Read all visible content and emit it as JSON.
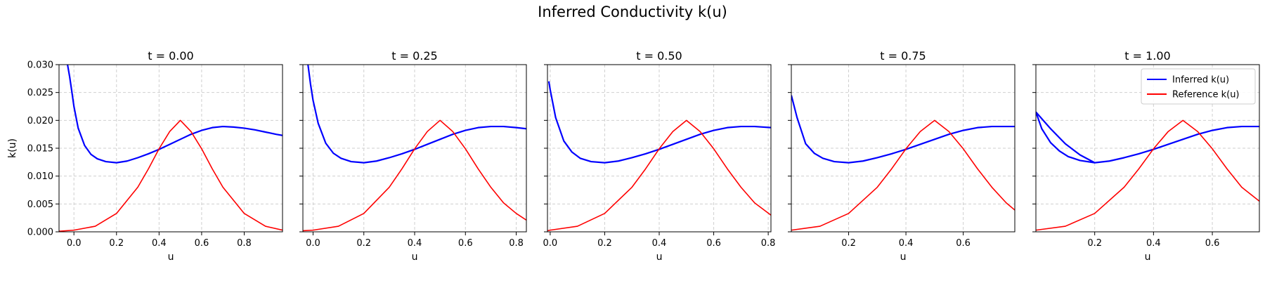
{
  "figure": {
    "title": "Inferred Conductivity k(u)"
  },
  "chart_data": [
    {
      "type": "line",
      "title": "t = 0.00",
      "xlabel": "u",
      "ylabel": "k(u)",
      "xlim": [
        -0.07,
        0.98
      ],
      "ylim": [
        0,
        0.03
      ],
      "xticks": [
        0.0,
        0.2,
        0.4,
        0.6,
        0.8
      ],
      "xtick_labels": [
        "0.0",
        "0.2",
        "0.4",
        "0.6",
        "0.8"
      ],
      "yticks": [
        0,
        0.005,
        0.01,
        0.015,
        0.02,
        0.025,
        0.03
      ],
      "ytick_labels": [
        "0.000",
        "0.005",
        "0.010",
        "0.015",
        "0.020",
        "0.025",
        "0.030"
      ],
      "grid": true,
      "series": [
        {
          "color": "#0000ff",
          "x": [
            -0.03,
            -0.02,
            -0.01,
            0.0,
            0.02,
            0.05,
            0.08,
            0.11,
            0.15,
            0.2,
            0.25,
            0.3,
            0.35,
            0.4,
            0.45,
            0.5,
            0.55,
            0.6,
            0.65,
            0.7,
            0.75,
            0.8,
            0.85,
            0.9,
            0.95,
            0.98
          ],
          "y": [
            0.03,
            0.0278,
            0.0252,
            0.0225,
            0.0186,
            0.0155,
            0.0139,
            0.0131,
            0.0126,
            0.0124,
            0.0127,
            0.0133,
            0.014,
            0.0148,
            0.0157,
            0.0166,
            0.0175,
            0.0182,
            0.0187,
            0.0189,
            0.0188,
            0.0186,
            0.0183,
            0.0179,
            0.0175,
            0.0173
          ]
        },
        {
          "color": "#ff0000",
          "x": [
            -0.07,
            0.0,
            0.1,
            0.2,
            0.3,
            0.35,
            0.4,
            0.45,
            0.5,
            0.55,
            0.6,
            0.65,
            0.7,
            0.8,
            0.9,
            0.98
          ],
          "y": [
            0.0001,
            0.0003,
            0.001,
            0.0033,
            0.008,
            0.0113,
            0.0149,
            0.018,
            0.02,
            0.018,
            0.0149,
            0.0113,
            0.008,
            0.0033,
            0.001,
            0.0003
          ]
        }
      ]
    },
    {
      "type": "line",
      "title": "t = 0.25",
      "xlabel": "u",
      "ylim": [
        0,
        0.03
      ],
      "xlim": [
        -0.04,
        0.84
      ],
      "xticks": [
        0.0,
        0.2,
        0.4,
        0.6,
        0.8
      ],
      "xtick_labels": [
        "0.0",
        "0.2",
        "0.4",
        "0.6",
        "0.8"
      ],
      "yticks": [
        0,
        0.005,
        0.01,
        0.015,
        0.02,
        0.025,
        0.03
      ],
      "grid": true,
      "series": [
        {
          "color": "#0000ff",
          "x": [
            -0.02,
            -0.01,
            0.0,
            0.02,
            0.05,
            0.08,
            0.11,
            0.15,
            0.2,
            0.25,
            0.3,
            0.35,
            0.4,
            0.45,
            0.5,
            0.55,
            0.6,
            0.65,
            0.7,
            0.75,
            0.8,
            0.84
          ],
          "y": [
            0.03,
            0.0265,
            0.0236,
            0.0195,
            0.0159,
            0.0141,
            0.0132,
            0.0126,
            0.0124,
            0.0127,
            0.0133,
            0.014,
            0.0148,
            0.0157,
            0.0166,
            0.0175,
            0.0182,
            0.0187,
            0.0189,
            0.0189,
            0.0187,
            0.0185
          ]
        },
        {
          "color": "#ff0000",
          "x": [
            -0.04,
            0.0,
            0.1,
            0.2,
            0.3,
            0.35,
            0.4,
            0.45,
            0.5,
            0.55,
            0.6,
            0.65,
            0.7,
            0.75,
            0.8,
            0.84
          ],
          "y": [
            0.0002,
            0.0003,
            0.001,
            0.0033,
            0.008,
            0.0113,
            0.0149,
            0.018,
            0.02,
            0.018,
            0.0149,
            0.0113,
            0.008,
            0.0052,
            0.0033,
            0.0021
          ]
        }
      ]
    },
    {
      "type": "line",
      "title": "t = 0.50",
      "xlabel": "u",
      "ylim": [
        0,
        0.03
      ],
      "xlim": [
        -0.01,
        0.81
      ],
      "xticks": [
        0.0,
        0.2,
        0.4,
        0.6,
        0.8
      ],
      "xtick_labels": [
        "0.0",
        "0.2",
        "0.4",
        "0.6",
        "0.8"
      ],
      "yticks": [
        0,
        0.005,
        0.01,
        0.015,
        0.02,
        0.025,
        0.03
      ],
      "grid": true,
      "series": [
        {
          "color": "#0000ff",
          "x": [
            -0.005,
            0.0,
            0.02,
            0.05,
            0.08,
            0.11,
            0.15,
            0.2,
            0.25,
            0.3,
            0.35,
            0.4,
            0.45,
            0.5,
            0.55,
            0.6,
            0.65,
            0.7,
            0.75,
            0.81
          ],
          "y": [
            0.027,
            0.0255,
            0.0205,
            0.0163,
            0.0143,
            0.0132,
            0.0126,
            0.0124,
            0.0127,
            0.0133,
            0.014,
            0.0148,
            0.0157,
            0.0166,
            0.0175,
            0.0182,
            0.0187,
            0.0189,
            0.0189,
            0.0187
          ]
        },
        {
          "color": "#ff0000",
          "x": [
            -0.01,
            0.0,
            0.1,
            0.2,
            0.3,
            0.35,
            0.4,
            0.45,
            0.5,
            0.55,
            0.6,
            0.65,
            0.7,
            0.75,
            0.81
          ],
          "y": [
            0.0002,
            0.0003,
            0.001,
            0.0033,
            0.008,
            0.0113,
            0.0149,
            0.018,
            0.02,
            0.018,
            0.0149,
            0.0113,
            0.008,
            0.0052,
            0.003
          ]
        }
      ]
    },
    {
      "type": "line",
      "title": "t = 0.75",
      "xlabel": "u",
      "ylim": [
        0,
        0.03
      ],
      "xlim": [
        0.0,
        0.78
      ],
      "xticks": [
        0.2,
        0.4,
        0.6
      ],
      "xtick_labels": [
        "0.2",
        "0.4",
        "0.6"
      ],
      "yticks": [
        0,
        0.005,
        0.01,
        0.015,
        0.02,
        0.025,
        0.03
      ],
      "grid": true,
      "series": [
        {
          "color": "#0000ff",
          "x": [
            0.0,
            0.02,
            0.05,
            0.08,
            0.11,
            0.15,
            0.2,
            0.25,
            0.3,
            0.35,
            0.4,
            0.45,
            0.5,
            0.55,
            0.6,
            0.65,
            0.7,
            0.75,
            0.78
          ],
          "y": [
            0.0245,
            0.0205,
            0.0158,
            0.0141,
            0.0132,
            0.0126,
            0.0124,
            0.0127,
            0.0133,
            0.014,
            0.0148,
            0.0157,
            0.0166,
            0.0175,
            0.0182,
            0.0187,
            0.0189,
            0.0189,
            0.0189
          ]
        },
        {
          "color": "#ff0000",
          "x": [
            0.0,
            0.1,
            0.2,
            0.3,
            0.35,
            0.4,
            0.45,
            0.5,
            0.55,
            0.6,
            0.65,
            0.7,
            0.75,
            0.78
          ],
          "y": [
            0.0003,
            0.001,
            0.0033,
            0.008,
            0.0113,
            0.0149,
            0.018,
            0.02,
            0.018,
            0.0149,
            0.0113,
            0.008,
            0.0052,
            0.0039
          ]
        }
      ]
    },
    {
      "type": "line",
      "title": "t = 1.00",
      "xlabel": "u",
      "ylim": [
        0,
        0.03
      ],
      "xlim": [
        0.0,
        0.76
      ],
      "xticks": [
        0.2,
        0.4,
        0.6
      ],
      "xtick_labels": [
        "0.2",
        "0.4",
        "0.6"
      ],
      "yticks": [
        0,
        0.005,
        0.01,
        0.015,
        0.02,
        0.025,
        0.03
      ],
      "grid": true,
      "legend": {
        "position": "top-right",
        "entries": [
          "Inferred k(u)",
          "Reference k(u)"
        ]
      },
      "series": [
        {
          "name": "Inferred k(u)",
          "color": "#0000ff",
          "x": [
            0.0,
            0.05,
            0.1,
            0.15,
            0.2,
            0.25,
            0.3,
            0.35,
            0.4,
            0.45,
            0.5,
            0.55,
            0.6,
            0.65,
            0.7,
            0.76
          ],
          "y": [
            0.0215,
            0.0185,
            0.0158,
            0.0138,
            0.0124,
            0.0127,
            0.0133,
            0.014,
            0.0148,
            0.0157,
            0.0166,
            0.0175,
            0.0182,
            0.0187,
            0.0189,
            0.0189
          ]
        },
        {
          "color": "#0000ff",
          "x": [
            0.0,
            0.02,
            0.05,
            0.08,
            0.11,
            0.15,
            0.2
          ],
          "y": [
            0.0215,
            0.0185,
            0.016,
            0.0145,
            0.0135,
            0.0128,
            0.0124
          ]
        },
        {
          "name": "Reference k(u)",
          "color": "#ff0000",
          "x": [
            0.0,
            0.1,
            0.2,
            0.3,
            0.35,
            0.4,
            0.45,
            0.5,
            0.55,
            0.6,
            0.65,
            0.7,
            0.76
          ],
          "y": [
            0.0003,
            0.001,
            0.0033,
            0.008,
            0.0113,
            0.0149,
            0.018,
            0.02,
            0.018,
            0.0149,
            0.0113,
            0.008,
            0.0055
          ]
        }
      ]
    }
  ]
}
